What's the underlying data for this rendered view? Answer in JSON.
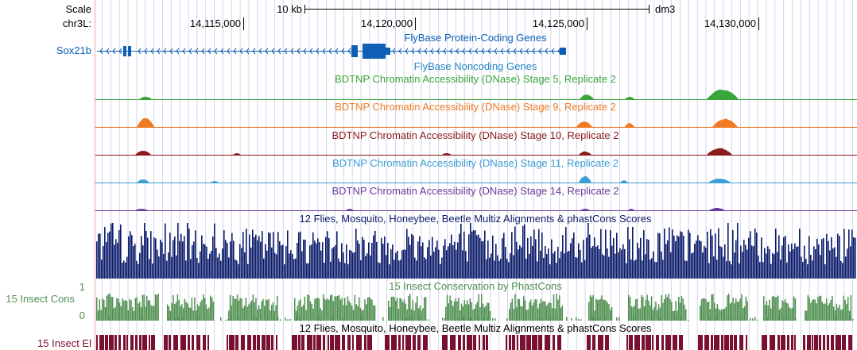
{
  "genome_browser": {
    "scale": {
      "label": "Scale",
      "bar_label": "10 kb",
      "assembly": "dm3"
    },
    "position": {
      "chrom_label": "chr3L:",
      "ticks": [
        "14,115,000",
        "14,120,000",
        "14,125,000",
        "14,130,000"
      ]
    },
    "colors": {
      "left_border": "#f0a0a0",
      "grid": "#d4d4f0",
      "gene_blue": "#0d5fb5",
      "noncoding_blue": "#1f84c4",
      "green": "#3aa53a",
      "orange": "#f07b24",
      "maroon": "#8b1a1a",
      "light_blue": "#3b9fd3",
      "purple": "#6a3a9a",
      "navy": "#0a1a6a",
      "cons_green": "#4f8f4f",
      "elements_red": "#7a1030"
    },
    "tracks": {
      "protein_coding": {
        "title": "FlyBase Protein-Coding Genes",
        "gene_name": "Sox21b"
      },
      "noncoding": {
        "title": "FlyBase Noncoding Genes"
      },
      "dnase_stage5": {
        "title": "BDTNP Chromatin Accessibility (DNase) Stage 5, Replicate 2"
      },
      "dnase_stage9": {
        "title": "BDTNP Chromatin Accessibility (DNase) Stage 9, Replicate 2"
      },
      "dnase_stage10": {
        "title": "BDTNP Chromatin Accessibility (DNase) Stage 10, Replicate 2"
      },
      "dnase_stage11": {
        "title": "BDTNP Chromatin Accessibility (DNase) Stage 11, Replicate 2"
      },
      "dnase_stage14": {
        "title": "BDTNP Chromatin Accessibility (DNase) Stage 14, Replicate 2"
      },
      "multiz": {
        "title": "12 Flies, Mosquito, Honeybee, Beetle Multiz Alignments & phastCons Scores"
      },
      "phastcons": {
        "title": "15 Insect Conservation by PhastCons",
        "side_label": "15 Insect Cons",
        "ymax_label": "1",
        "ymin_label": "0"
      },
      "elements": {
        "title": "12 Flies, Mosquito, Honeybee, Beetle Multiz Alignments & phastCons Scores",
        "side_label": "15 Insect El"
      }
    }
  }
}
